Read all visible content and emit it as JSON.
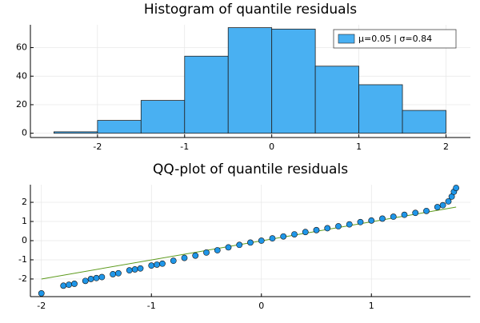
{
  "chart_data": [
    {
      "type": "histogram",
      "title": "Histogram of quantile residuals",
      "bins": [
        -2.5,
        -2,
        -1.5,
        -1,
        -0.5,
        0,
        0.5,
        1,
        1.5,
        2
      ],
      "series": [
        {
          "name": "μ=0.05 | σ=0.84",
          "color": "#49b0f2",
          "values": [
            1,
            9,
            23,
            54,
            74,
            73,
            47,
            34,
            16
          ]
        }
      ],
      "xlim": [
        -2.77,
        2.28
      ],
      "xticks": [
        -2,
        -1,
        0,
        1,
        2
      ],
      "ylim": [
        -3,
        76
      ],
      "yticks": [
        0,
        20,
        40,
        60
      ],
      "grid": true,
      "legend": "top-right"
    },
    {
      "type": "scatter",
      "title": "QQ-plot of quantile residuals",
      "x": [
        -2.0,
        -1.8,
        -1.75,
        -1.7,
        -1.6,
        -1.55,
        -1.5,
        -1.45,
        -1.35,
        -1.3,
        -1.2,
        -1.15,
        -1.1,
        -1.0,
        -0.95,
        -0.9,
        -0.8,
        -0.7,
        -0.6,
        -0.5,
        -0.4,
        -0.3,
        -0.2,
        -0.1,
        0,
        0.1,
        0.2,
        0.3,
        0.4,
        0.5,
        0.6,
        0.7,
        0.8,
        0.9,
        1.0,
        1.1,
        1.2,
        1.3,
        1.4,
        1.5,
        1.6,
        1.65,
        1.7,
        1.73,
        1.75,
        1.77
      ],
      "y": [
        -2.75,
        -2.35,
        -2.3,
        -2.25,
        -2.1,
        -2.0,
        -1.95,
        -1.9,
        -1.75,
        -1.7,
        -1.55,
        -1.5,
        -1.45,
        -1.3,
        -1.25,
        -1.2,
        -1.05,
        -0.9,
        -0.78,
        -0.62,
        -0.5,
        -0.35,
        -0.22,
        -0.1,
        0.0,
        0.12,
        0.22,
        0.33,
        0.45,
        0.55,
        0.65,
        0.75,
        0.85,
        0.97,
        1.05,
        1.15,
        1.25,
        1.35,
        1.45,
        1.55,
        1.75,
        1.85,
        2.05,
        2.3,
        2.55,
        2.75
      ],
      "color": "#1f96e8",
      "line": {
        "x": [
          -2.0,
          1.77
        ],
        "y": [
          -2.0,
          1.75
        ],
        "color": "#5c9a1c"
      },
      "xlim": [
        -2.1,
        1.9
      ],
      "xticks": [
        -2,
        -1,
        0,
        1
      ],
      "ylim": [
        -2.92,
        2.92
      ],
      "yticks": [
        -2,
        -1,
        0,
        1,
        2
      ],
      "grid": true
    }
  ]
}
